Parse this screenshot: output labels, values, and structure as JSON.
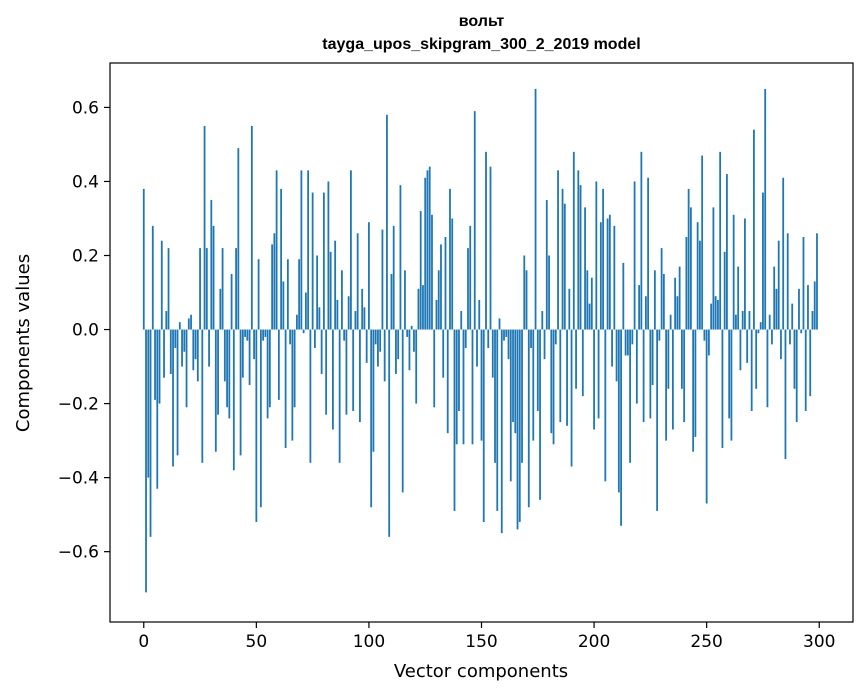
{
  "chart_data": {
    "type": "bar",
    "title": "вольт",
    "subtitle": "tayga_upos_skipgram_300_2_2019 model",
    "xlabel": "Vector components",
    "ylabel": "Components values",
    "xlim": [
      -15,
      315
    ],
    "ylim": [
      -0.79,
      0.72
    ],
    "xticks": [
      0,
      50,
      100,
      150,
      200,
      250,
      300
    ],
    "yticks": [
      -0.6,
      -0.4,
      -0.2,
      0.0,
      0.2,
      0.4,
      0.6
    ],
    "ytick_labels": [
      "−0.6",
      "−0.4",
      "−0.2",
      "0.0",
      "0.2",
      "0.4",
      "0.6"
    ],
    "bar_color": "#1f77b4",
    "grid": false,
    "values": [
      0.38,
      -0.71,
      -0.4,
      -0.56,
      0.28,
      -0.19,
      -0.43,
      -0.2,
      0.24,
      -0.13,
      0.05,
      0.22,
      -0.12,
      -0.37,
      -0.05,
      -0.34,
      0.02,
      -0.1,
      -0.06,
      -0.21,
      0.03,
      0.04,
      -0.11,
      -0.08,
      -0.14,
      0.22,
      -0.36,
      0.55,
      0.22,
      -0.1,
      0.35,
      0.28,
      -0.33,
      -0.23,
      0.11,
      0.22,
      -0.14,
      -0.21,
      -0.24,
      0.15,
      -0.38,
      0.22,
      0.49,
      -0.34,
      -0.13,
      -0.02,
      -0.03,
      -0.15,
      0.55,
      -0.08,
      -0.52,
      0.19,
      -0.48,
      -0.03,
      -0.02,
      -0.24,
      -0.21,
      0.23,
      0.26,
      0.43,
      -0.19,
      0.38,
      0.13,
      -0.32,
      0.19,
      -0.04,
      -0.3,
      -0.21,
      0.04,
      0.19,
      0.43,
      -0.01,
      0.1,
      0.43,
      -0.36,
      0.37,
      -0.05,
      0.2,
      0.06,
      -0.12,
      0.37,
      -0.23,
      0.4,
      0.21,
      -0.27,
      0.24,
      0.08,
      -0.36,
      0.16,
      -0.03,
      -0.23,
      0.09,
      0.43,
      -0.22,
      0.05,
      0.26,
      -0.25,
      0.11,
      0.06,
      -0.09,
      0.29,
      -0.48,
      -0.33,
      -0.04,
      -0.1,
      -0.06,
      0.27,
      -0.14,
      0.58,
      -0.56,
      0.15,
      0.28,
      -0.12,
      -0.08,
      0.39,
      -0.44,
      0.16,
      -0.02,
      -0.11,
      0.01,
      -0.06,
      -0.2,
      0.11,
      0.32,
      0.12,
      0.41,
      0.43,
      0.44,
      0.31,
      -0.21,
      0.08,
      0.16,
      0.23,
      -0.13,
      0.25,
      -0.28,
      0.38,
      0.3,
      -0.49,
      -0.31,
      -0.22,
      0.05,
      -0.31,
      -0.05,
      0.22,
      0.28,
      -0.31,
      0.59,
      -0.1,
      0.08,
      -0.3,
      -0.52,
      0.48,
      -0.05,
      0.44,
      -0.13,
      -0.36,
      -0.49,
      0.03,
      -0.55,
      -0.03,
      -0.02,
      -0.08,
      -0.41,
      -0.25,
      -0.28,
      -0.54,
      -0.52,
      -0.36,
      0.2,
      0.16,
      -0.48,
      -0.05,
      -0.3,
      0.65,
      -0.22,
      -0.46,
      0.05,
      -0.08,
      0.35,
      0.2,
      -0.28,
      -0.31,
      -0.04,
      0.43,
      -0.25,
      0.38,
      0.34,
      -0.26,
      0.11,
      -0.37,
      0.48,
      -0.16,
      0.43,
      0.39,
      -0.18,
      0.33,
      0.16,
      0.07,
      0.14,
      -0.27,
      0.4,
      -0.24,
      0.29,
      0.38,
      -0.41,
      0.3,
      0.31,
      -0.1,
      0.28,
      -0.14,
      -0.44,
      -0.53,
      0.18,
      -0.07,
      -0.07,
      -0.36,
      -0.04,
      0.4,
      -0.2,
      0.12,
      0.48,
      -0.25,
      0.09,
      0.41,
      -0.24,
      -0.15,
      0.16,
      -0.49,
      -0.03,
      0.22,
      0.15,
      -0.3,
      -0.16,
      0.04,
      -0.27,
      0.14,
      0.09,
      0.17,
      -0.16,
      -0.25,
      0.25,
      0.38,
      0.33,
      -0.33,
      -0.29,
      0.29,
      0.24,
      0.47,
      -0.03,
      -0.47,
      -0.07,
      0.07,
      0.33,
      0.09,
      0.08,
      0.48,
      -0.32,
      0.21,
      0.42,
      -0.24,
      -0.3,
      0.31,
      0.04,
      0.17,
      -0.11,
      0.05,
      0.3,
      -0.09,
      0.05,
      -0.22,
      0.54,
      -0.16,
      -0.01,
      0.02,
      0.37,
      0.65,
      -0.21,
      0.04,
      -0.04,
      0.17,
      0.11,
      0.24,
      -0.08,
      0.41,
      -0.35,
      0.26,
      -0.04,
      0.07,
      -0.16,
      -0.25,
      0.11,
      -0.01,
      0.25,
      -0.22,
      0.12,
      -0.18,
      0.05,
      0.13,
      0.26
    ]
  }
}
